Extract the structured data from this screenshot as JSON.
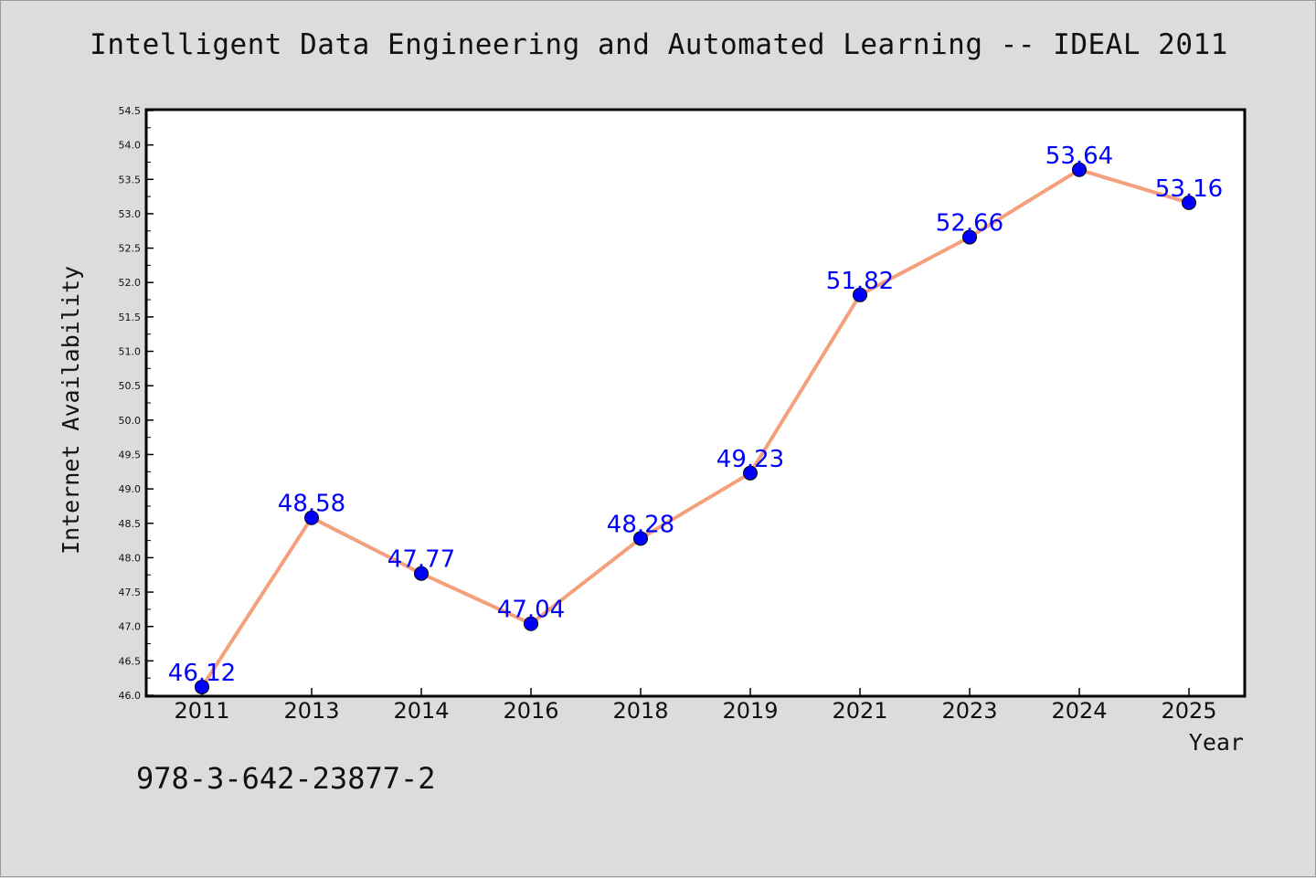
{
  "title": "Intelligent Data Engineering and Automated Learning -- IDEAL 2011",
  "footer_note": "978-3-642-23877-2",
  "colors": {
    "background": "#dcdcdc",
    "plot_background": "#ffffff",
    "line": "#f4a07c",
    "marker": "#0000ff",
    "data_label": "#0000ff"
  },
  "chart_data": {
    "type": "line",
    "title": "Intelligent Data Engineering and Automated Learning -- IDEAL 2011",
    "xlabel": "Year",
    "ylabel": "Internet Availability",
    "categories": [
      "2011",
      "2013",
      "2014",
      "2016",
      "2018",
      "2019",
      "2021",
      "2023",
      "2024",
      "2025"
    ],
    "series": [
      {
        "values": [
          46.12,
          48.58,
          47.77,
          47.04,
          48.28,
          49.23,
          51.82,
          52.66,
          53.64,
          53.16
        ],
        "data_labels": [
          "46.12",
          "48.58",
          "47.77",
          "47.04",
          "48.28",
          "49.23",
          "51.82",
          "52.66",
          "53.64",
          "53.16"
        ]
      }
    ],
    "ylim": [
      46.0,
      54.5
    ],
    "yticks": [
      "46.0",
      "46.5",
      "47.0",
      "47.5",
      "48.0",
      "48.5",
      "49.0",
      "49.5",
      "50.0",
      "50.5",
      "51.0",
      "51.5",
      "52.0",
      "52.5",
      "53.0",
      "53.5",
      "54.0",
      "54.5"
    ],
    "grid": false,
    "legend": "none"
  }
}
